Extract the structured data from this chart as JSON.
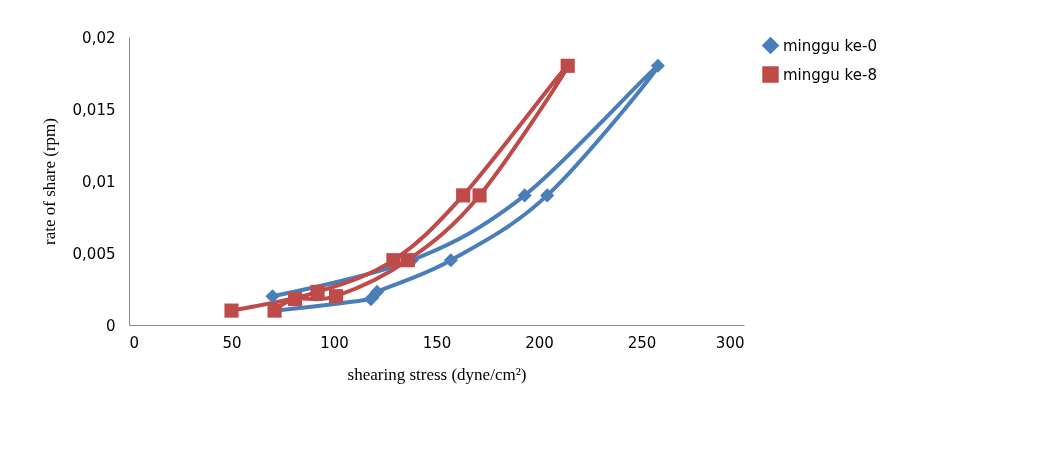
{
  "chart_data": {
    "type": "line",
    "xlabel": "shearing stress (dyne/cm²)",
    "ylabel": "rate of share (rpm)",
    "xlim": [
      0,
      300
    ],
    "xticks": [
      0,
      50,
      100,
      150,
      200,
      250,
      300
    ],
    "ylim": [
      0,
      0.02
    ],
    "yticks": [
      0,
      {
        "value": 0.005,
        "label": "0,005"
      },
      {
        "value": 0.01,
        "label": "0,01"
      },
      {
        "value": 0.015,
        "label": "0,015"
      },
      {
        "value": 0.02,
        "label": "0,02"
      }
    ],
    "grid": false,
    "legend": "right",
    "series": [
      {
        "name": "minggu ke-0",
        "color": "#4a7ebb",
        "marker": "diamond",
        "x": [
          70,
          138,
          193,
          258,
          204,
          157,
          121,
          118,
          72
        ],
        "values": [
          0.002,
          0.0045,
          0.009,
          0.018,
          0.009,
          0.0045,
          0.0023,
          0.0018,
          0.001
        ]
      },
      {
        "name": "minggu ke-8",
        "color": "#be4b48",
        "marker": "square",
        "x": [
          50,
          92,
          129,
          163,
          214,
          171,
          136,
          101,
          81,
          71
        ],
        "values": [
          0.001,
          0.0023,
          0.0045,
          0.009,
          0.018,
          0.009,
          0.0045,
          0.002,
          0.0018,
          0.001
        ]
      }
    ]
  }
}
